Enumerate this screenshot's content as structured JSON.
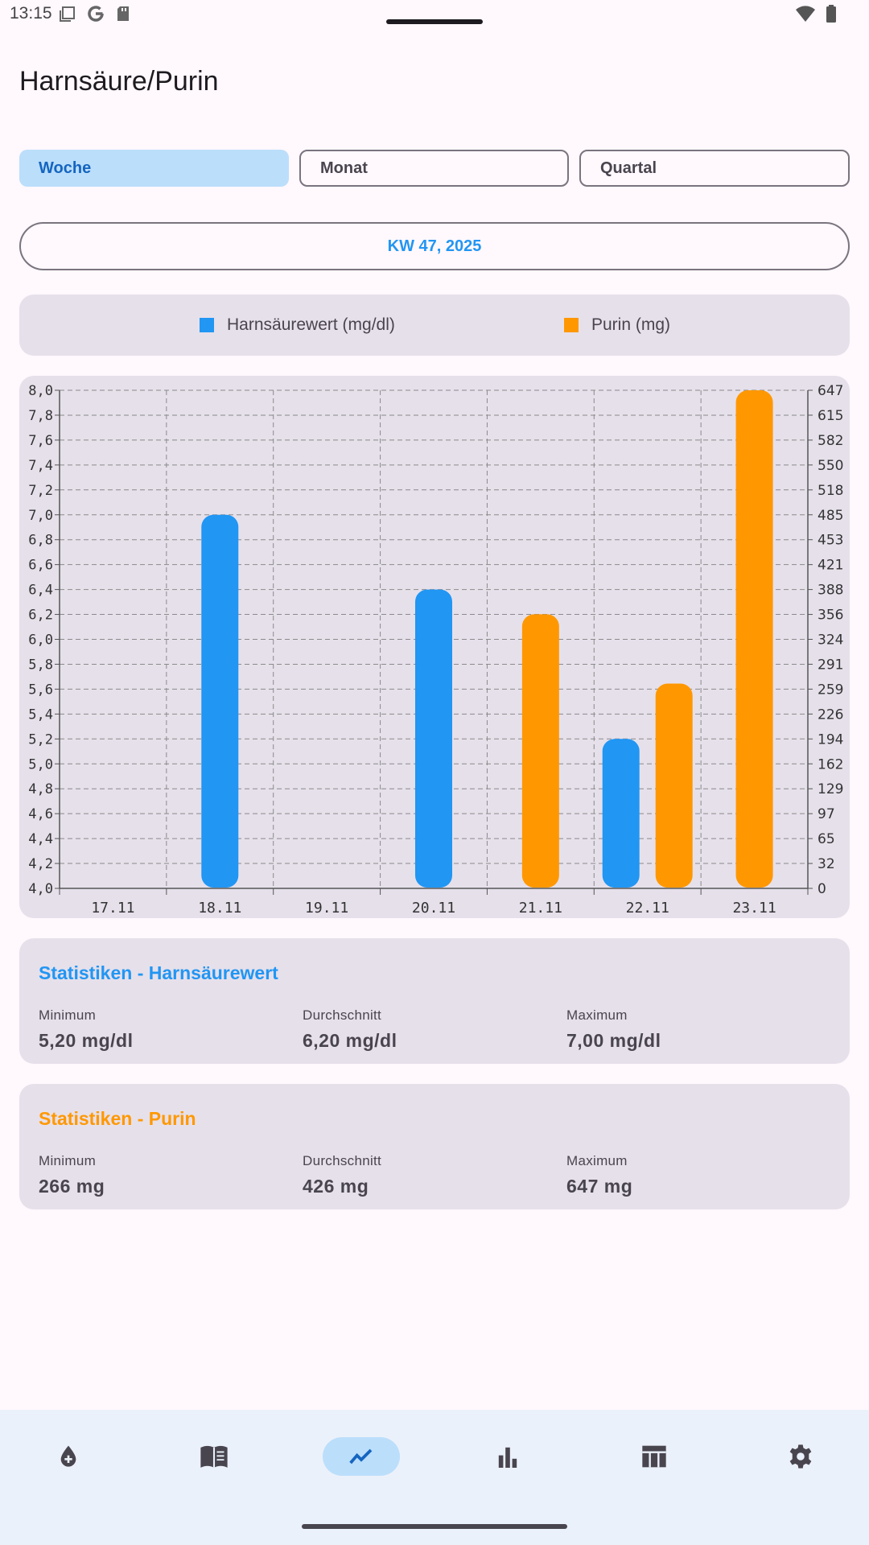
{
  "status_bar": {
    "time": "13:15"
  },
  "page": {
    "title": "Harnsäure/Purin"
  },
  "period_tabs": [
    {
      "label": "Woche",
      "selected": true
    },
    {
      "label": "Monat",
      "selected": false
    },
    {
      "label": "Quartal",
      "selected": false
    }
  ],
  "week_selector": {
    "label": "KW 47, 2025"
  },
  "legend": [
    {
      "label": "Harnsäurewert (mg/dl)",
      "color": "#2196F3"
    },
    {
      "label": "Purin (mg)",
      "color": "#FF9800"
    }
  ],
  "chart_data": {
    "type": "bar",
    "categories": [
      "17.11",
      "18.11",
      "19.11",
      "20.11",
      "21.11",
      "22.11",
      "23.11"
    ],
    "series": [
      {
        "name": "Harnsäurewert (mg/dl)",
        "axis": "left",
        "color": "#2196F3",
        "values": [
          null,
          7.0,
          null,
          6.4,
          null,
          5.2,
          null
        ]
      },
      {
        "name": "Purin (mg)",
        "axis": "right",
        "color": "#FF9800",
        "values": [
          null,
          null,
          null,
          null,
          356,
          266,
          647
        ]
      }
    ],
    "y_left": {
      "range": [
        4.0,
        8.0
      ],
      "ticks": [
        "4,0",
        "4,2",
        "4,4",
        "4,6",
        "4,8",
        "5,0",
        "5,2",
        "5,4",
        "5,6",
        "5,8",
        "6,0",
        "6,2",
        "6,4",
        "6,6",
        "6,8",
        "7,0",
        "7,2",
        "7,4",
        "7,6",
        "7,8",
        "8,0"
      ]
    },
    "y_right": {
      "range": [
        0,
        647
      ],
      "ticks": [
        "0",
        "32",
        "65",
        "97",
        "129",
        "162",
        "194",
        "226",
        "259",
        "291",
        "324",
        "356",
        "388",
        "421",
        "453",
        "485",
        "518",
        "550",
        "582",
        "615",
        "647"
      ]
    },
    "grid": true
  },
  "stats_uric": {
    "title": "Statistiken - Harnsäurewert",
    "color": "#2196F3",
    "min_label": "Minimum",
    "min_value": "5,20 mg/dl",
    "avg_label": "Durchschnitt",
    "avg_value": "6,20 mg/dl",
    "max_label": "Maximum",
    "max_value": "7,00 mg/dl"
  },
  "stats_purine": {
    "title": "Statistiken - Purin",
    "color": "#FF9800",
    "min_label": "Minimum",
    "min_value": "266 mg",
    "avg_label": "Durchschnitt",
    "avg_value": "426 mg",
    "max_label": "Maximum",
    "max_value": "647 mg"
  },
  "bottom_nav": [
    {
      "icon": "blood-drop-add-icon",
      "active": false
    },
    {
      "icon": "book-icon",
      "active": false
    },
    {
      "icon": "trend-line-icon",
      "active": true
    },
    {
      "icon": "bar-chart-icon",
      "active": false
    },
    {
      "icon": "table-icon",
      "active": false
    },
    {
      "icon": "gear-icon",
      "active": false
    }
  ]
}
